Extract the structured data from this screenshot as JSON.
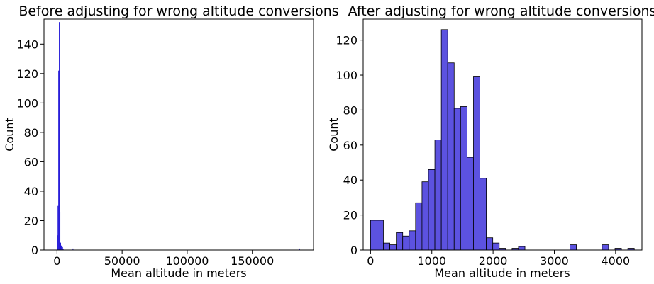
{
  "chart_data": [
    {
      "type": "bar",
      "subtype": "histogram",
      "title": "Before adjusting for wrong altitude conversions",
      "xlabel": "Mean altitude in meters",
      "ylabel": "Count",
      "xlim": [
        -10000,
        197000
      ],
      "ylim": [
        0,
        157
      ],
      "xticks": [
        0,
        50000,
        100000,
        150000
      ],
      "xtick_labels": [
        "0",
        "50000",
        "100000",
        "150000"
      ],
      "yticks": [
        0,
        20,
        40,
        60,
        80,
        100,
        120,
        140
      ],
      "bar_color": "#1a0fd6",
      "bins": [
        {
          "x0": 0,
          "x1": 500,
          "count": 10
        },
        {
          "x0": 500,
          "x1": 1000,
          "count": 30
        },
        {
          "x0": 1000,
          "x1": 1500,
          "count": 122
        },
        {
          "x0": 1500,
          "x1": 2000,
          "count": 155
        },
        {
          "x0": 2000,
          "x1": 2500,
          "count": 26
        },
        {
          "x0": 2500,
          "x1": 3000,
          "count": 5
        },
        {
          "x0": 3000,
          "x1": 3500,
          "count": 3
        },
        {
          "x0": 3500,
          "x1": 4000,
          "count": 3
        },
        {
          "x0": 4000,
          "x1": 4500,
          "count": 2
        },
        {
          "x0": 4500,
          "x1": 5000,
          "count": 1
        },
        {
          "x0": 12000,
          "x1": 12500,
          "count": 1
        },
        {
          "x0": 186000,
          "x1": 186500,
          "count": 1
        }
      ],
      "grid": false,
      "legend": "none"
    },
    {
      "type": "bar",
      "subtype": "histogram",
      "title": "After adjusting for wrong altitude conversions",
      "xlabel": "Mean altitude in meters",
      "ylabel": "Count",
      "xlim": [
        -120,
        4430
      ],
      "ylim": [
        0,
        132
      ],
      "xticks": [
        0,
        1000,
        2000,
        3000,
        4000
      ],
      "xtick_labels": [
        "0",
        "1000",
        "2000",
        "3000",
        "4000"
      ],
      "yticks": [
        0,
        20,
        40,
        60,
        80,
        100,
        120
      ],
      "bar_color": "#5c52e0",
      "bar_edge_color": "#000000",
      "bin_start": 0,
      "bin_width": 105,
      "counts": [
        17,
        17,
        4,
        3,
        10,
        8,
        11,
        27,
        39,
        46,
        63,
        126,
        107,
        81,
        82,
        53,
        99,
        41,
        7,
        4,
        1,
        0,
        1,
        2,
        0,
        0,
        0,
        0,
        0,
        0,
        0,
        3,
        0,
        0,
        0,
        0,
        3,
        0,
        1,
        0,
        1
      ],
      "grid": false,
      "legend": "none"
    }
  ]
}
